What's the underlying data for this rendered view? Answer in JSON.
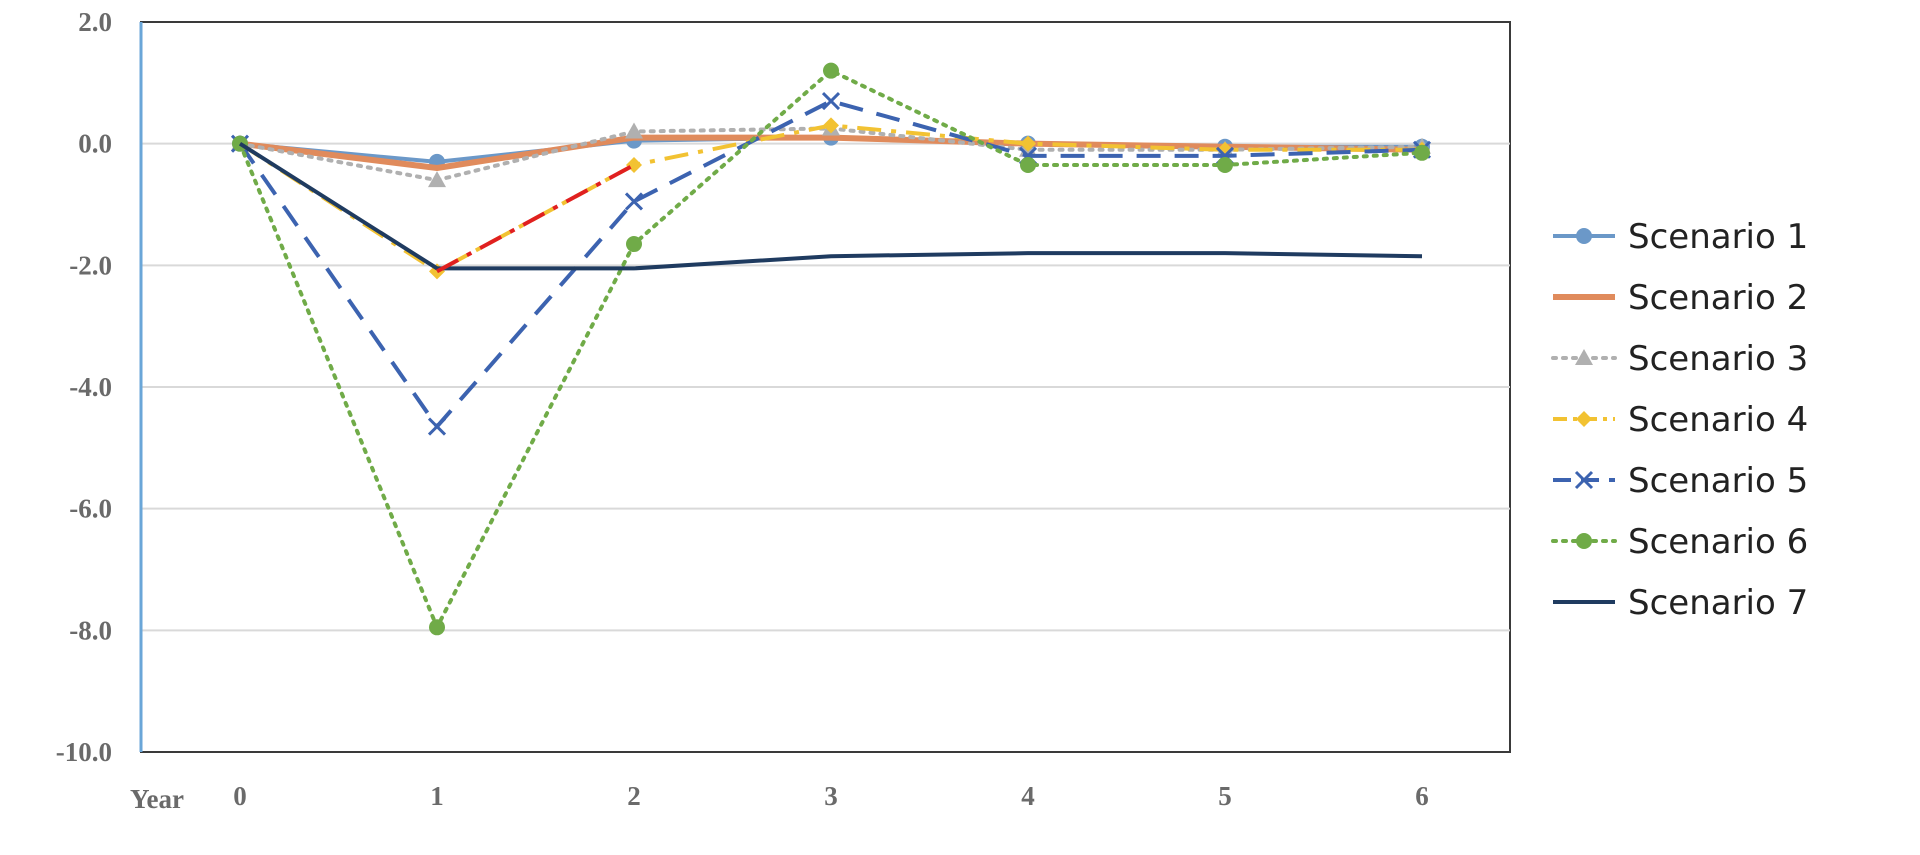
{
  "chart_data": {
    "type": "line",
    "xlabel": "Year",
    "x": [
      0,
      1,
      2,
      3,
      4,
      5,
      6
    ],
    "ylim": [
      -10,
      2
    ],
    "yticks": [
      "2.0",
      "0.0",
      "-2.0",
      "-4.0",
      "-6.0",
      "-8.0",
      "-10.0"
    ],
    "grid": true,
    "legend_position": "right",
    "series": [
      {
        "name": "Scenario 1",
        "color": "#6b98c8",
        "marker": "circle",
        "dash": "solid",
        "values": [
          0.0,
          -0.3,
          0.05,
          0.1,
          0.0,
          -0.05,
          -0.05
        ]
      },
      {
        "name": "Scenario 2",
        "color": "#e08b5c",
        "marker": "none",
        "dash": "solid",
        "values": [
          0.0,
          -0.4,
          0.1,
          0.1,
          0.0,
          -0.05,
          -0.1
        ]
      },
      {
        "name": "Scenario 3",
        "color": "#b0b0b0",
        "marker": "triangle",
        "dash": "dotted",
        "values": [
          0.0,
          -0.6,
          0.2,
          0.25,
          -0.1,
          -0.1,
          -0.05
        ]
      },
      {
        "name": "Scenario 4",
        "color": "#f2c232",
        "marker": "diamond",
        "dash": "dashdot",
        "values": [
          0.0,
          -2.1,
          -0.35,
          0.3,
          0.0,
          -0.1,
          -0.1
        ]
      },
      {
        "name": "Scenario 5",
        "color": "#3c63b0",
        "marker": "x",
        "dash": "dashed",
        "values": [
          0.0,
          -4.65,
          -0.95,
          0.7,
          -0.2,
          -0.2,
          -0.1
        ]
      },
      {
        "name": "Scenario 6",
        "color": "#70ab48",
        "marker": "circle",
        "dash": "dotted",
        "values": [
          0.0,
          -7.95,
          -1.65,
          1.2,
          -0.35,
          -0.35,
          -0.15
        ]
      },
      {
        "name": "Scenario 7",
        "color": "#1f3b60",
        "marker": "none",
        "dash": "solid",
        "values": [
          0.0,
          -2.05,
          -2.05,
          -1.85,
          -1.8,
          -1.8,
          -1.85
        ]
      }
    ]
  }
}
